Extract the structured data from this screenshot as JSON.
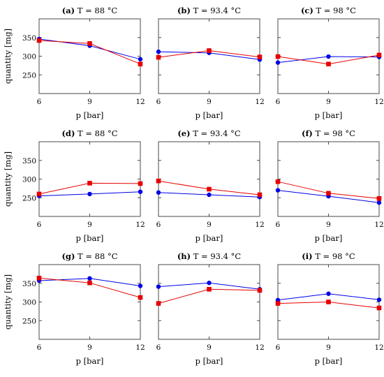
{
  "colors": {
    "blue_series": "#0000e6",
    "red_series": "#e60000"
  },
  "chart_data": [
    {
      "type": "line",
      "tag": "(a)",
      "title": "T = 88 °C",
      "xlabel": "p [bar]",
      "ylabel": "quantity [mg]",
      "x": [
        6,
        9,
        12
      ],
      "xlim": [
        6,
        12
      ],
      "ylim": [
        200,
        400
      ],
      "yticks": [
        250,
        300,
        350
      ],
      "xticks": [
        6,
        9,
        12
      ],
      "series": [
        {
          "color": "blue",
          "marker": "circle",
          "values": [
            346,
            328,
            292
          ]
        },
        {
          "color": "red",
          "marker": "square",
          "values": [
            342,
            334,
            279
          ]
        }
      ]
    },
    {
      "type": "line",
      "tag": "(b)",
      "title": "T = 93.4 °C",
      "xlabel": "p [bar]",
      "ylabel": "",
      "x": [
        6,
        9,
        12
      ],
      "xlim": [
        6,
        12
      ],
      "ylim": [
        200,
        400
      ],
      "yticks": [
        250,
        300,
        350
      ],
      "xticks": [
        6,
        9,
        12
      ],
      "series": [
        {
          "color": "blue",
          "marker": "circle",
          "values": [
            312,
            309,
            291
          ]
        },
        {
          "color": "red",
          "marker": "square",
          "values": [
            297,
            315,
            298
          ]
        }
      ]
    },
    {
      "type": "line",
      "tag": "(c)",
      "title": "T = 98 °C",
      "xlabel": "p [bar]",
      "ylabel": "",
      "x": [
        6,
        9,
        12
      ],
      "xlim": [
        6,
        12
      ],
      "ylim": [
        200,
        400
      ],
      "yticks": [
        250,
        300,
        350
      ],
      "xticks": [
        6,
        9,
        12
      ],
      "series": [
        {
          "color": "blue",
          "marker": "circle",
          "values": [
            283,
            299,
            298
          ]
        },
        {
          "color": "red",
          "marker": "square",
          "values": [
            299,
            279,
            303
          ]
        }
      ]
    },
    {
      "type": "line",
      "tag": "(d)",
      "title": "T = 88 °C",
      "xlabel": "p [bar]",
      "ylabel": "quantity [mg]",
      "x": [
        6,
        9,
        12
      ],
      "xlim": [
        6,
        12
      ],
      "ylim": [
        200,
        400
      ],
      "yticks": [
        250,
        300,
        350
      ],
      "xticks": [
        6,
        9,
        12
      ],
      "series": [
        {
          "color": "blue",
          "marker": "circle",
          "values": [
            255,
            260,
            266
          ]
        },
        {
          "color": "red",
          "marker": "square",
          "values": [
            260,
            289,
            288
          ]
        }
      ]
    },
    {
      "type": "line",
      "tag": "(e)",
      "title": "T = 93.4 °C",
      "xlabel": "p [bar]",
      "ylabel": "",
      "x": [
        6,
        9,
        12
      ],
      "xlim": [
        6,
        12
      ],
      "ylim": [
        200,
        400
      ],
      "yticks": [
        250,
        300,
        350
      ],
      "xticks": [
        6,
        9,
        12
      ],
      "series": [
        {
          "color": "blue",
          "marker": "circle",
          "values": [
            264,
            258,
            252
          ]
        },
        {
          "color": "red",
          "marker": "square",
          "values": [
            295,
            273,
            258
          ]
        }
      ]
    },
    {
      "type": "line",
      "tag": "(f)",
      "title": "T = 98 °C",
      "xlabel": "p [bar]",
      "ylabel": "",
      "x": [
        6,
        9,
        12
      ],
      "xlim": [
        6,
        12
      ],
      "ylim": [
        200,
        400
      ],
      "yticks": [
        250,
        300,
        350
      ],
      "xticks": [
        6,
        9,
        12
      ],
      "series": [
        {
          "color": "blue",
          "marker": "circle",
          "values": [
            270,
            254,
            237
          ]
        },
        {
          "color": "red",
          "marker": "square",
          "values": [
            293,
            262,
            248
          ]
        }
      ]
    },
    {
      "type": "line",
      "tag": "(g)",
      "title": "T = 88 °C",
      "xlabel": "p [bar]",
      "ylabel": "quantity [mg]",
      "x": [
        6,
        9,
        12
      ],
      "xlim": [
        6,
        12
      ],
      "ylim": [
        200,
        400
      ],
      "yticks": [
        250,
        300,
        350
      ],
      "xticks": [
        6,
        9,
        12
      ],
      "series": [
        {
          "color": "blue",
          "marker": "circle",
          "values": [
            357,
            363,
            343
          ]
        },
        {
          "color": "red",
          "marker": "square",
          "values": [
            364,
            351,
            312
          ]
        }
      ]
    },
    {
      "type": "line",
      "tag": "(h)",
      "title": "T = 93.4 °C",
      "xlabel": "p [bar]",
      "ylabel": "",
      "x": [
        6,
        9,
        12
      ],
      "xlim": [
        6,
        12
      ],
      "ylim": [
        200,
        400
      ],
      "yticks": [
        250,
        300,
        350
      ],
      "xticks": [
        6,
        9,
        12
      ],
      "series": [
        {
          "color": "blue",
          "marker": "circle",
          "values": [
            341,
            351,
            334
          ]
        },
        {
          "color": "red",
          "marker": "square",
          "values": [
            296,
            334,
            331
          ]
        }
      ]
    },
    {
      "type": "line",
      "tag": "(i)",
      "title": "T = 98 °C",
      "xlabel": "p [bar]",
      "ylabel": "",
      "x": [
        6,
        9,
        12
      ],
      "xlim": [
        6,
        12
      ],
      "ylim": [
        200,
        400
      ],
      "yticks": [
        250,
        300,
        350
      ],
      "xticks": [
        6,
        9,
        12
      ],
      "series": [
        {
          "color": "blue",
          "marker": "circle",
          "values": [
            305,
            322,
            306
          ]
        },
        {
          "color": "red",
          "marker": "square",
          "values": [
            296,
            300,
            284
          ]
        }
      ]
    }
  ]
}
